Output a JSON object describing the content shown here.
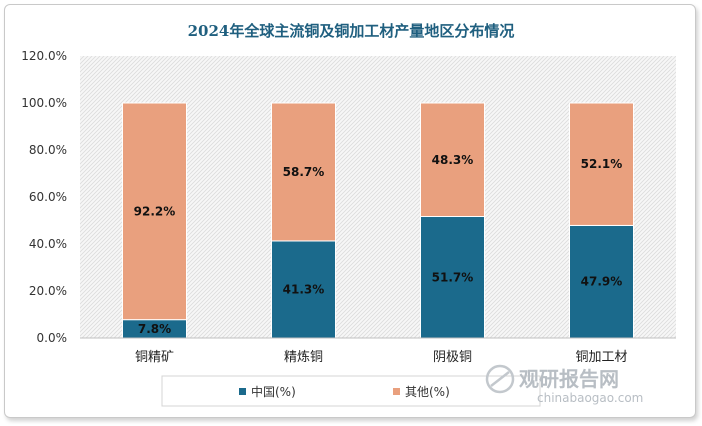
{
  "chart_data": {
    "type": "bar",
    "stacked": true,
    "title": "2024年全球主流铜及铜加工材产量地区分布情况",
    "categories": [
      "铜精矿",
      "精炼铜",
      "阴极铜",
      "铜加工材"
    ],
    "series": [
      {
        "name": "中国(%)",
        "values": [
          7.8,
          41.3,
          51.7,
          47.9
        ],
        "labels": [
          "7.8%",
          "41.3%",
          "51.7%",
          "47.9%"
        ],
        "color": "#1b6a8c"
      },
      {
        "name": "其他(%)",
        "values": [
          92.2,
          58.7,
          48.3,
          52.1
        ],
        "labels": [
          "92.2%",
          "58.7%",
          "48.3%",
          "52.1%"
        ],
        "color": "#e9a07e"
      }
    ],
    "yticks": [
      "0.0%",
      "20.0%",
      "40.0%",
      "60.0%",
      "80.0%",
      "100.0%",
      "120.0%"
    ],
    "ylim": [
      0,
      120
    ],
    "legend_position": "bottom",
    "grid": false
  },
  "watermark": {
    "text": "观研报告网",
    "url": "chinabaogao.com"
  }
}
